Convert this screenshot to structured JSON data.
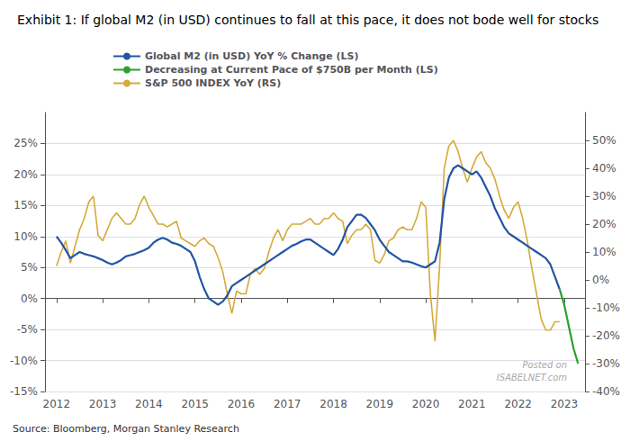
{
  "chart_data": {
    "type": "line",
    "title": "Exhibit 1: If global M2 (in USD) continues to fall at this pace, it does not bode well for stocks",
    "annotations": [
      "Source: Bloomberg, Morgan Stanley Research",
      "Posted on",
      "ISABELNET.com"
    ],
    "legend": "top",
    "grid": true,
    "xlim": [
      2011.75,
      2023.45
    ],
    "xticks": [
      2012,
      2013,
      2014,
      2015,
      2016,
      2017,
      2018,
      2019,
      2020,
      2021,
      2022,
      2023
    ],
    "ylim": [
      -15,
      30
    ],
    "yticks": [
      {
        "value": -15,
        "label": "-15%"
      },
      {
        "value": -10,
        "label": "-10%"
      },
      {
        "value": -5,
        "label": "-5%"
      },
      {
        "value": 0,
        "label": "0%"
      },
      {
        "value": 5,
        "label": "5%"
      },
      {
        "value": 10,
        "label": "10%"
      },
      {
        "value": 15,
        "label": "15%"
      },
      {
        "value": 20,
        "label": "20%"
      },
      {
        "value": 25,
        "label": "25%"
      }
    ],
    "y2lim": [
      -40,
      60
    ],
    "y2ticks": [
      {
        "value": -40,
        "label": "-40%"
      },
      {
        "value": -30,
        "label": "-30%"
      },
      {
        "value": -20,
        "label": "-20%"
      },
      {
        "value": -10,
        "label": "-10%"
      },
      {
        "value": 0,
        "label": "0%"
      },
      {
        "value": 10,
        "label": "10%"
      },
      {
        "value": 20,
        "label": "20%"
      },
      {
        "value": 30,
        "label": "30%"
      },
      {
        "value": 40,
        "label": "40%"
      },
      {
        "value": 50,
        "label": "50%"
      }
    ],
    "series": [
      {
        "name": "Global M2 (in USD) YoY % Change (LS)",
        "color": "#2255a4",
        "axis": "y",
        "x": [
          2012.0,
          2012.1,
          2012.2,
          2012.3,
          2012.4,
          2012.5,
          2012.6,
          2012.7,
          2012.8,
          2012.9,
          2013.0,
          2013.1,
          2013.2,
          2013.3,
          2013.4,
          2013.5,
          2013.6,
          2013.7,
          2013.8,
          2013.9,
          2014.0,
          2014.1,
          2014.2,
          2014.3,
          2014.4,
          2014.5,
          2014.6,
          2014.7,
          2014.8,
          2014.9,
          2015.0,
          2015.1,
          2015.2,
          2015.3,
          2015.4,
          2015.5,
          2015.6,
          2015.7,
          2015.8,
          2015.9,
          2016.0,
          2016.1,
          2016.2,
          2016.3,
          2016.4,
          2016.5,
          2016.6,
          2016.7,
          2016.8,
          2016.9,
          2017.0,
          2017.1,
          2017.2,
          2017.3,
          2017.4,
          2017.5,
          2017.6,
          2017.7,
          2017.8,
          2017.9,
          2018.0,
          2018.1,
          2018.2,
          2018.3,
          2018.4,
          2018.5,
          2018.6,
          2018.7,
          2018.8,
          2018.9,
          2019.0,
          2019.1,
          2019.2,
          2019.3,
          2019.4,
          2019.5,
          2019.6,
          2019.7,
          2019.8,
          2019.9,
          2020.0,
          2020.1,
          2020.2,
          2020.3,
          2020.4,
          2020.5,
          2020.6,
          2020.7,
          2020.8,
          2020.9,
          2021.0,
          2021.1,
          2021.2,
          2021.3,
          2021.4,
          2021.5,
          2021.6,
          2021.7,
          2021.8,
          2021.9,
          2022.0,
          2022.1,
          2022.2,
          2022.3,
          2022.4,
          2022.5,
          2022.6,
          2022.7,
          2022.8,
          2022.9
        ],
        "values": [
          10.0,
          9.0,
          7.8,
          6.5,
          7.0,
          7.5,
          7.2,
          7.0,
          6.8,
          6.5,
          6.2,
          5.8,
          5.5,
          5.8,
          6.2,
          6.8,
          7.0,
          7.2,
          7.5,
          7.8,
          8.2,
          9.0,
          9.5,
          9.8,
          9.5,
          9.0,
          8.8,
          8.5,
          8.0,
          7.5,
          6.0,
          3.5,
          1.5,
          0.0,
          -0.5,
          -1.0,
          -0.5,
          0.5,
          2.0,
          2.5,
          3.0,
          3.5,
          4.0,
          4.5,
          5.0,
          5.5,
          6.0,
          6.5,
          7.0,
          7.5,
          8.0,
          8.5,
          8.8,
          9.2,
          9.5,
          9.5,
          9.0,
          8.5,
          8.0,
          7.5,
          7.0,
          8.0,
          9.5,
          11.5,
          12.5,
          13.5,
          13.5,
          13.0,
          12.0,
          11.0,
          9.5,
          8.5,
          7.5,
          7.0,
          6.5,
          6.0,
          6.0,
          5.8,
          5.5,
          5.2,
          5.0,
          5.5,
          6.0,
          9.0,
          16.0,
          19.5,
          21.0,
          21.5,
          21.0,
          20.5,
          20.0,
          20.5,
          19.5,
          18.0,
          16.5,
          14.5,
          13.0,
          11.5,
          10.5,
          10.0,
          9.5,
          9.0,
          8.5,
          8.0,
          7.5,
          7.0,
          6.5,
          5.5,
          3.5,
          1.5
        ]
      },
      {
        "name": "Decreasing at Current Pace of $750B per Month (LS)",
        "color": "#2ca02c",
        "axis": "y",
        "x": [
          2022.9,
          2023.0,
          2023.1,
          2023.2,
          2023.3
        ],
        "values": [
          1.5,
          -1.0,
          -4.5,
          -8.0,
          -10.5
        ]
      },
      {
        "name": "S&P 500 INDEX YoY (RS)",
        "color": "#d4aa3a",
        "axis": "y2",
        "x": [
          2012.0,
          2012.1,
          2012.2,
          2012.3,
          2012.4,
          2012.5,
          2012.6,
          2012.7,
          2012.8,
          2012.9,
          2013.0,
          2013.1,
          2013.2,
          2013.3,
          2013.4,
          2013.5,
          2013.6,
          2013.7,
          2013.8,
          2013.9,
          2014.0,
          2014.1,
          2014.2,
          2014.3,
          2014.4,
          2014.5,
          2014.6,
          2014.7,
          2014.8,
          2014.9,
          2015.0,
          2015.1,
          2015.2,
          2015.3,
          2015.4,
          2015.5,
          2015.6,
          2015.7,
          2015.8,
          2015.9,
          2016.0,
          2016.1,
          2016.2,
          2016.3,
          2016.4,
          2016.5,
          2016.6,
          2016.7,
          2016.8,
          2016.9,
          2017.0,
          2017.1,
          2017.2,
          2017.3,
          2017.4,
          2017.5,
          2017.6,
          2017.7,
          2017.8,
          2017.9,
          2018.0,
          2018.1,
          2018.2,
          2018.3,
          2018.4,
          2018.5,
          2018.6,
          2018.7,
          2018.8,
          2018.9,
          2019.0,
          2019.1,
          2019.2,
          2019.3,
          2019.4,
          2019.5,
          2019.6,
          2019.7,
          2019.8,
          2019.9,
          2020.0,
          2020.1,
          2020.2,
          2020.3,
          2020.4,
          2020.5,
          2020.6,
          2020.7,
          2020.8,
          2020.9,
          2021.0,
          2021.1,
          2021.2,
          2021.3,
          2021.4,
          2021.5,
          2021.6,
          2021.7,
          2021.8,
          2021.9,
          2022.0,
          2022.1,
          2022.2,
          2022.3,
          2022.4,
          2022.5,
          2022.6,
          2022.7,
          2022.8,
          2022.9
        ],
        "values": [
          5.0,
          10.0,
          14.0,
          6.0,
          12.0,
          18.0,
          22.0,
          28.0,
          30.0,
          16.0,
          14.0,
          18.0,
          22.0,
          24.0,
          22.0,
          20.0,
          20.0,
          22.0,
          27.0,
          30.0,
          26.0,
          23.0,
          20.0,
          20.0,
          19.0,
          20.0,
          21.0,
          15.0,
          14.0,
          13.0,
          12.0,
          14.0,
          15.0,
          13.0,
          12.0,
          8.0,
          3.0,
          -5.0,
          -12.0,
          -4.0,
          -5.0,
          -5.0,
          2.0,
          4.0,
          2.0,
          4.0,
          10.0,
          15.0,
          18.0,
          14.0,
          18.0,
          20.0,
          20.0,
          20.0,
          21.0,
          22.0,
          20.0,
          20.0,
          22.0,
          22.0,
          24.0,
          22.0,
          21.0,
          13.0,
          16.0,
          18.0,
          18.0,
          20.0,
          18.0,
          7.0,
          6.0,
          9.0,
          14.0,
          15.0,
          18.0,
          19.0,
          18.0,
          18.0,
          22.0,
          28.0,
          26.0,
          -5.0,
          -22.0,
          5.0,
          40.0,
          48.0,
          50.0,
          46.0,
          40.0,
          35.0,
          40.0,
          44.0,
          46.0,
          42.0,
          40.0,
          36.0,
          30.0,
          25.0,
          22.0,
          26.0,
          28.0,
          22.0,
          14.0,
          4.0,
          -5.0,
          -14.0,
          -18.0,
          -18.0,
          -15.0,
          -15.0
        ]
      }
    ]
  }
}
